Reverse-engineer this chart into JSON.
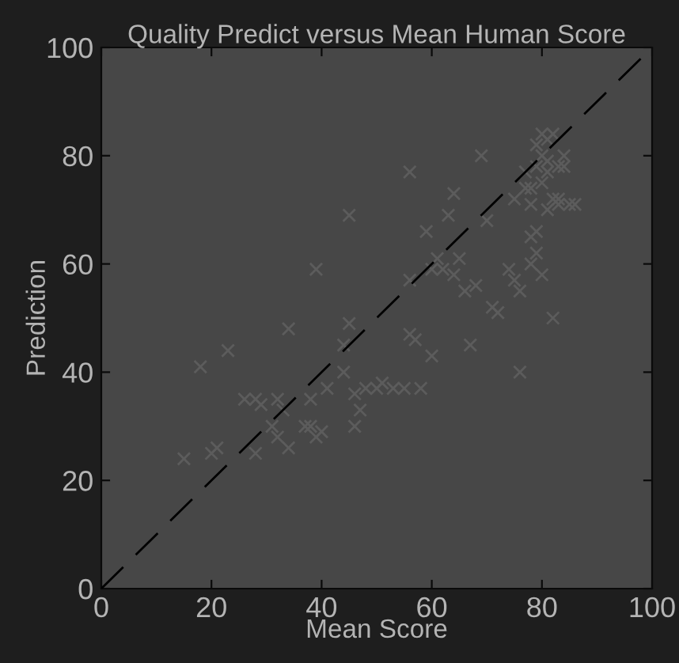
{
  "chart_data": {
    "type": "scatter",
    "title": "Quality Predict versus Mean Human Score",
    "xlabel": "Mean Score",
    "ylabel": "Prediction",
    "xlim": [
      0,
      100
    ],
    "ylim": [
      0,
      100
    ],
    "xticks": [
      0,
      20,
      40,
      60,
      80,
      100
    ],
    "yticks": [
      0,
      20,
      40,
      60,
      80,
      100
    ],
    "grid": false,
    "legend": false,
    "marker": "cross",
    "series": [
      {
        "color": "#5c5c5c",
        "x": [
          15,
          18,
          20,
          21,
          23,
          26,
          28,
          28,
          29,
          31,
          32,
          32,
          33,
          34,
          34,
          37,
          38,
          38,
          39,
          40,
          41,
          39,
          44,
          44,
          45,
          45,
          46,
          46,
          47,
          48,
          50,
          51,
          53,
          55,
          56,
          56,
          56,
          57,
          58,
          59,
          60,
          60,
          61,
          62,
          63,
          64,
          64,
          65,
          66,
          67,
          68,
          69,
          70,
          71,
          72,
          74,
          75,
          75,
          76,
          77,
          77,
          78,
          78,
          78,
          79,
          79,
          79,
          80,
          80,
          80,
          81,
          81,
          81,
          82,
          82,
          82,
          83,
          83,
          84,
          84,
          85,
          86,
          79,
          76,
          78,
          80,
          83,
          81
        ],
        "values": [
          24,
          41,
          25,
          26,
          44,
          35,
          25,
          35,
          34,
          30,
          28,
          35,
          33,
          48,
          26,
          30,
          30,
          35,
          28,
          29,
          37,
          59,
          45,
          40,
          49,
          69,
          36,
          30,
          33,
          37,
          37,
          38,
          37,
          37,
          47,
          57,
          77,
          46,
          37,
          66,
          43,
          59,
          61,
          59,
          69,
          58,
          73,
          61,
          55,
          45,
          56,
          80,
          68,
          52,
          51,
          59,
          57,
          72,
          40,
          74,
          77,
          71,
          65,
          60,
          62,
          82,
          78,
          75,
          80,
          84,
          70,
          77,
          79,
          72,
          50,
          84,
          78,
          71,
          80,
          78,
          71,
          71,
          66,
          55,
          74,
          58,
          72,
          83
        ]
      },
      {
        "type": "line",
        "color": "#000000",
        "line_style": "dashed",
        "marker": "none",
        "x": [
          0,
          100
        ],
        "values": [
          0,
          100
        ]
      }
    ]
  }
}
